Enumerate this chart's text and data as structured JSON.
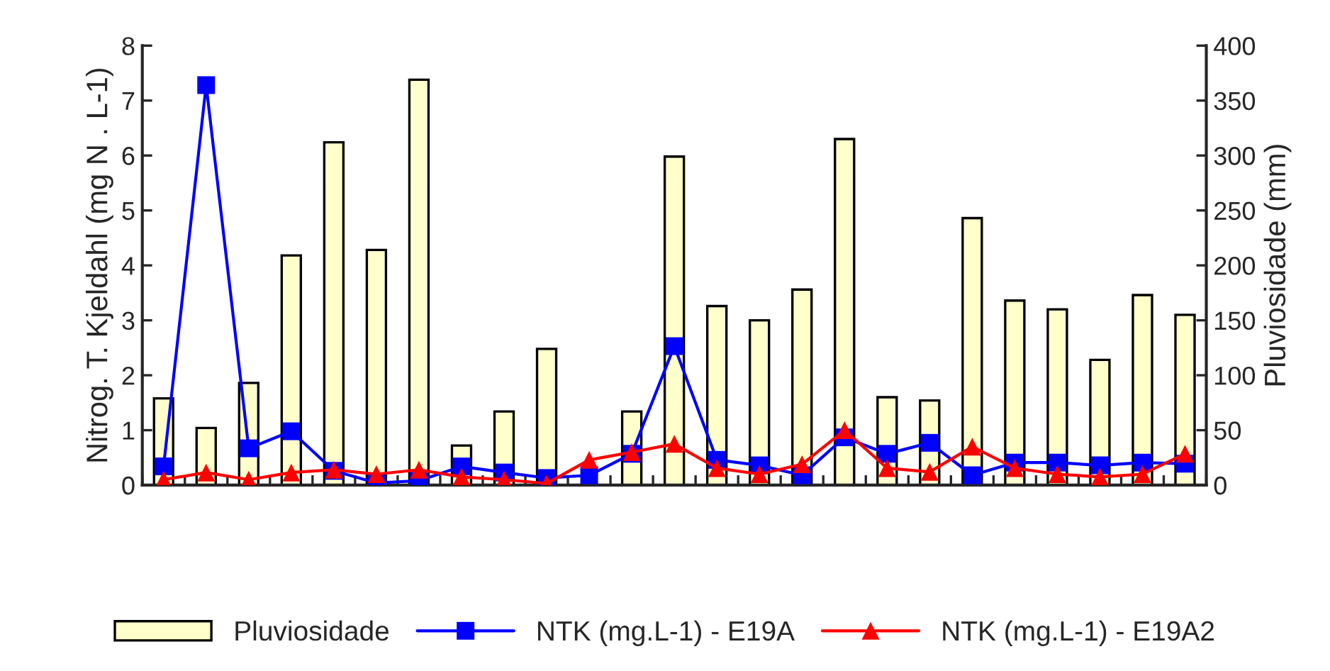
{
  "chart_data": {
    "type": "bar",
    "ylabel": "Nitrog. T. Kjeldahl (mg N . L-1)",
    "y2label": "Pluviosidade (mm)",
    "categories": [
      null,
      null,
      null,
      null,
      null,
      null,
      null,
      null,
      null,
      null,
      null,
      null,
      null,
      null,
      null,
      null,
      null,
      null,
      null,
      null,
      null,
      null,
      null,
      null,
      null
    ],
    "series": [
      {
        "name": "Pluviosidade",
        "axis": "y2",
        "color": "#ffffcc",
        "values": [
          79,
          52,
          93,
          209,
          312,
          214,
          369,
          36,
          67,
          124,
          null,
          67,
          299,
          163,
          150,
          178,
          315,
          80,
          77,
          243,
          168,
          160,
          114,
          173,
          155
        ]
      },
      {
        "name": "NTK (mg.L-1) - E19A",
        "type": "line",
        "color": "#0000ff",
        "marker": "square",
        "values": [
          0.34,
          7.28,
          0.67,
          0.98,
          0.26,
          0.04,
          0.08,
          0.34,
          0.23,
          0.13,
          0.18,
          0.57,
          2.53,
          0.46,
          0.36,
          0.18,
          0.87,
          0.57,
          0.77,
          0.18,
          0.41,
          0.41,
          0.36,
          0.41,
          0.39
        ]
      },
      {
        "name": "NTK (mg.L-1) - E19A2",
        "type": "line",
        "color": "#ff0000",
        "marker": "triangle",
        "values": [
          0.1,
          0.23,
          0.1,
          0.23,
          0.28,
          0.2,
          0.28,
          0.15,
          0.1,
          0.03,
          0.46,
          0.6,
          0.75,
          0.31,
          0.2,
          0.38,
          1.0,
          0.31,
          0.24,
          0.7,
          0.31,
          0.2,
          0.15,
          0.2,
          0.57
        ]
      }
    ],
    "ylim": [
      0,
      8
    ],
    "yticks": [
      0,
      1,
      2,
      3,
      4,
      5,
      6,
      7,
      8
    ],
    "y2lim": [
      0,
      400
    ],
    "y2ticks": [
      0,
      50,
      100,
      150,
      200,
      250,
      300,
      350,
      400
    ],
    "grid": false,
    "legend": "bottom",
    "line_style": "solid"
  }
}
